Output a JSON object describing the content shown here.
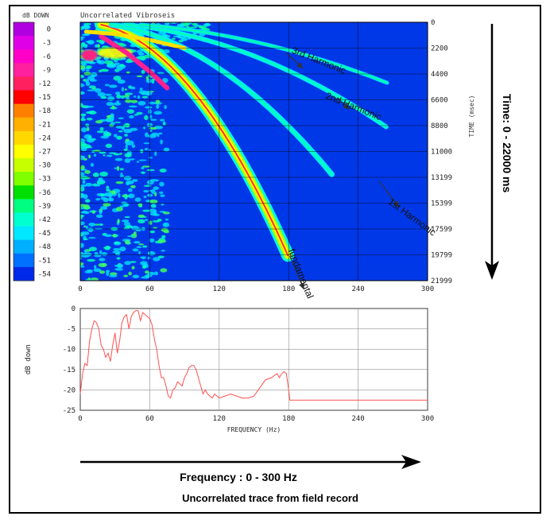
{
  "chart_data": [
    {
      "type": "heatmap",
      "title": "Uncorrelated Vibroseis",
      "colorbar_label": "dB DOWN",
      "colorbar_ticks": [
        "0",
        "-3",
        "-6",
        "-9",
        "-12",
        "-15",
        "-18",
        "-21",
        "-24",
        "-27",
        "-30",
        "-33",
        "-36",
        "-39",
        "-42",
        "-45",
        "-48",
        "-51",
        "-54"
      ],
      "colorbar_colors": [
        "#b000e0",
        "#e000e8",
        "#ff00c8",
        "#ff20a0",
        "#ff2060",
        "#ff0000",
        "#ff8000",
        "#ffb000",
        "#ffd800",
        "#ffff00",
        "#c8ff00",
        "#80ff00",
        "#00e000",
        "#00ff80",
        "#00ffd0",
        "#00e8ff",
        "#00b0ff",
        "#0070ff",
        "#0028e8"
      ],
      "xlabel": "",
      "ylabel": "TIME (msec)",
      "xlim": [
        0,
        300
      ],
      "ylim": [
        0,
        21999
      ],
      "x_ticks": [
        "0",
        "60",
        "120",
        "180",
        "240",
        "300"
      ],
      "y_ticks": [
        "0",
        "2200",
        "4400",
        "6600",
        "8800",
        "11000",
        "13199",
        "15399",
        "17599",
        "19799",
        "21999"
      ],
      "sweep": {
        "freq_range_hz": [
          0,
          180
        ],
        "time_range_ms": [
          0,
          20000
        ]
      },
      "annotations": [
        {
          "text": "3rd Harmonic",
          "x": 205,
          "y": 3500
        },
        {
          "text": "2nd Harmonic",
          "x": 235,
          "y": 7400
        },
        {
          "text": "1st Harmonic",
          "x": 285,
          "y": 16800
        },
        {
          "text": "fundamental",
          "x": 188,
          "y": 21500
        }
      ]
    },
    {
      "type": "line",
      "ylabel": "dB down",
      "xlabel": "FREQUENCY (Hz)",
      "xlim": [
        0,
        300
      ],
      "ylim": [
        -25,
        0
      ],
      "x_ticks": [
        "0",
        "60",
        "120",
        "180",
        "240",
        "300"
      ],
      "y_ticks": [
        "0",
        "-5",
        "-10",
        "-15",
        "-20",
        "-25"
      ],
      "series": [
        {
          "color": "#ff5050",
          "x": [
            0,
            2,
            4,
            6,
            8,
            10,
            12,
            14,
            16,
            18,
            20,
            22,
            24,
            26,
            28,
            30,
            32,
            34,
            36,
            38,
            40,
            42,
            44,
            46,
            48,
            50,
            52,
            54,
            56,
            58,
            60,
            62,
            64,
            66,
            68,
            70,
            72,
            74,
            76,
            78,
            80,
            82,
            84,
            86,
            88,
            90,
            92,
            94,
            96,
            98,
            100,
            102,
            104,
            106,
            108,
            110,
            112,
            114,
            116,
            118,
            120,
            125,
            130,
            135,
            140,
            145,
            150,
            155,
            160,
            165,
            170,
            172,
            174,
            176,
            178,
            180,
            181,
            300
          ],
          "y": [
            -21,
            -16,
            -13.5,
            -14,
            -8,
            -5,
            -3,
            -3.5,
            -5,
            -9,
            -10,
            -12,
            -11,
            -13,
            -9,
            -6,
            -11,
            -8,
            -3.5,
            -2,
            -1.5,
            -5,
            -2,
            -1,
            -0.5,
            -0.5,
            -3,
            -1,
            -1.5,
            -2,
            -2.5,
            -4,
            -7.5,
            -10,
            -14,
            -17,
            -17,
            -19,
            -21.5,
            -22,
            -20,
            -19.5,
            -18,
            -18.5,
            -19,
            -17,
            -16,
            -14.5,
            -14,
            -14,
            -15,
            -17,
            -19,
            -21,
            -20,
            -21,
            -21.5,
            -22,
            -21,
            -21.5,
            -22,
            -21.5,
            -21,
            -21.5,
            -22,
            -22,
            -21.5,
            -19.5,
            -17.5,
            -17,
            -16,
            -17,
            -16,
            -15.5,
            -16,
            -20,
            -22.5,
            -22.5
          ]
        }
      ]
    }
  ],
  "labels": {
    "time_axis_label": "Time: 0 - 22000 ms",
    "frequency_axis_label": "Frequency : 0 - 300 Hz",
    "footer_caption": "Uncorrelated trace from field record"
  }
}
